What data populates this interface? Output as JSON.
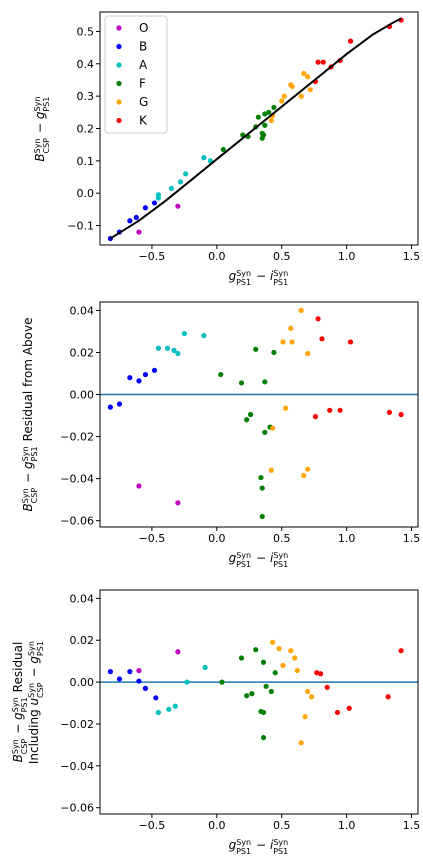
{
  "chart_data": [
    {
      "type": "scatter",
      "xlabel": "g_PS1^Syn − i_PS1^Syn",
      "ylabel": "B_CSP^Syn − g_PS1^Syn",
      "xlim": [
        -0.9,
        1.55
      ],
      "ylim": [
        -0.16,
        0.56
      ],
      "xticks": [
        -0.5,
        0.0,
        0.5,
        1.0,
        1.5
      ],
      "xtick_labels": [
        "−0.5",
        "0.0",
        "0.5",
        "1.0",
        "1.5"
      ],
      "yticks": [
        -0.1,
        0.0,
        0.1,
        0.2,
        0.3,
        0.4,
        0.5
      ],
      "ytick_labels": [
        "−0.1",
        "0.0",
        "0.1",
        "0.2",
        "0.3",
        "0.4",
        "0.5"
      ],
      "grid": false,
      "legend": {
        "placement": "top-left",
        "entries": [
          "O",
          "B",
          "A",
          "F",
          "G",
          "K"
        ]
      },
      "series": [
        {
          "name": "O",
          "color": "#bf00bf",
          "points": [
            [
              -0.6,
              -0.12
            ],
            [
              -0.3,
              -0.04
            ]
          ]
        },
        {
          "name": "B",
          "color": "#0000ff",
          "points": [
            [
              -0.82,
              -0.14
            ],
            [
              -0.75,
              -0.12
            ],
            [
              -0.67,
              -0.085
            ],
            [
              -0.62,
              -0.075
            ],
            [
              -0.55,
              -0.045
            ],
            [
              -0.48,
              -0.03
            ]
          ]
        },
        {
          "name": "A",
          "color": "#00bfbf",
          "points": [
            [
              -0.45,
              -0.015
            ],
            [
              -0.45,
              -0.005
            ],
            [
              -0.35,
              0.015
            ],
            [
              -0.28,
              0.035
            ],
            [
              -0.24,
              0.06
            ],
            [
              -0.1,
              0.11
            ],
            [
              -0.05,
              0.1
            ]
          ]
        },
        {
          "name": "F",
          "color": "#008000",
          "points": [
            [
              0.05,
              0.135
            ],
            [
              0.2,
              0.18
            ],
            [
              0.24,
              0.175
            ],
            [
              0.3,
              0.205
            ],
            [
              0.32,
              0.235
            ],
            [
              0.35,
              0.185
            ],
            [
              0.35,
              0.17
            ],
            [
              0.36,
              0.18
            ],
            [
              0.37,
              0.21
            ],
            [
              0.37,
              0.245
            ],
            [
              0.4,
              0.25
            ],
            [
              0.44,
              0.265
            ]
          ]
        },
        {
          "name": "G",
          "color": "#ffa500",
          "points": [
            [
              0.42,
              0.225
            ],
            [
              0.43,
              0.24
            ],
            [
              0.5,
              0.285
            ],
            [
              0.52,
              0.3
            ],
            [
              0.57,
              0.335
            ],
            [
              0.58,
              0.33
            ],
            [
              0.65,
              0.3
            ],
            [
              0.67,
              0.37
            ],
            [
              0.7,
              0.36
            ],
            [
              0.72,
              0.32
            ]
          ]
        },
        {
          "name": "K",
          "color": "#ff0000",
          "points": [
            [
              0.76,
              0.345
            ],
            [
              0.78,
              0.405
            ],
            [
              0.82,
              0.405
            ],
            [
              0.88,
              0.39
            ],
            [
              0.95,
              0.41
            ],
            [
              1.03,
              0.47
            ],
            [
              1.33,
              0.515
            ],
            [
              1.42,
              0.535
            ]
          ]
        }
      ],
      "fit_line": {
        "color": "#000000",
        "x": [
          -0.82,
          -0.6,
          -0.4,
          -0.2,
          0.0,
          0.2,
          0.4,
          0.6,
          0.8,
          1.0,
          1.2,
          1.35,
          1.42
        ],
        "y": [
          -0.14,
          -0.085,
          -0.025,
          0.04,
          0.105,
          0.17,
          0.235,
          0.3,
          0.365,
          0.43,
          0.49,
          0.525,
          0.54
        ]
      }
    },
    {
      "type": "scatter",
      "xlabel": "g_PS1^Syn − i_PS1^Syn",
      "ylabel": "B_CSP^Syn − g_PS1^Syn Residual from Above",
      "xlim": [
        -0.9,
        1.55
      ],
      "ylim": [
        -0.063,
        0.044
      ],
      "xticks": [
        -0.5,
        0.0,
        0.5,
        1.0,
        1.5
      ],
      "xtick_labels": [
        "−0.5",
        "0.0",
        "0.5",
        "1.0",
        "1.5"
      ],
      "yticks": [
        -0.06,
        -0.04,
        -0.02,
        0.0,
        0.02,
        0.04
      ],
      "ytick_labels": [
        "−0.06",
        "−0.04",
        "−0.02",
        "0.00",
        "0.02",
        "0.04"
      ],
      "grid": false,
      "zero_line_color": "#1f77b4",
      "series": [
        {
          "name": "O",
          "color": "#bf00bf",
          "points": [
            [
              -0.6,
              -0.0435
            ],
            [
              -0.3,
              -0.0515
            ]
          ]
        },
        {
          "name": "B",
          "color": "#0000ff",
          "points": [
            [
              -0.82,
              -0.006
            ],
            [
              -0.75,
              -0.0045
            ],
            [
              -0.67,
              0.008
            ],
            [
              -0.6,
              0.0065
            ],
            [
              -0.55,
              0.0095
            ],
            [
              -0.48,
              0.0115
            ]
          ]
        },
        {
          "name": "A",
          "color": "#00bfbf",
          "points": [
            [
              -0.45,
              0.022
            ],
            [
              -0.38,
              0.022
            ],
            [
              -0.33,
              0.021
            ],
            [
              -0.3,
              0.0195
            ],
            [
              -0.25,
              0.029
            ],
            [
              -0.1,
              0.028
            ]
          ]
        },
        {
          "name": "F",
          "color": "#008000",
          "points": [
            [
              0.03,
              0.0095
            ],
            [
              0.19,
              0.0055
            ],
            [
              0.23,
              -0.012
            ],
            [
              0.26,
              -0.0095
            ],
            [
              0.3,
              0.0215
            ],
            [
              0.34,
              -0.0395
            ],
            [
              0.35,
              -0.0445
            ],
            [
              0.35,
              -0.058
            ],
            [
              0.37,
              -0.018
            ],
            [
              0.37,
              0.006
            ],
            [
              0.41,
              -0.0155
            ],
            [
              0.44,
              0.02
            ]
          ]
        },
        {
          "name": "G",
          "color": "#ffa500",
          "points": [
            [
              0.42,
              -0.036
            ],
            [
              0.43,
              -0.016
            ],
            [
              0.51,
              0.025
            ],
            [
              0.53,
              -0.0065
            ],
            [
              0.57,
              0.0315
            ],
            [
              0.58,
              0.025
            ],
            [
              0.65,
              0.04
            ],
            [
              0.67,
              -0.0385
            ],
            [
              0.7,
              0.0195
            ],
            [
              0.7,
              -0.0355
            ]
          ]
        },
        {
          "name": "K",
          "color": "#ff0000",
          "points": [
            [
              0.76,
              -0.0105
            ],
            [
              0.78,
              0.036
            ],
            [
              0.81,
              0.0265
            ],
            [
              0.87,
              -0.0075
            ],
            [
              0.95,
              -0.0075
            ],
            [
              1.03,
              0.025
            ],
            [
              1.33,
              -0.0085
            ],
            [
              1.42,
              -0.0095
            ]
          ]
        }
      ]
    },
    {
      "type": "scatter",
      "xlabel": "g_PS1^Syn − i_PS1^Syn",
      "ylabel_line1": "B_CSP^Syn − g_PS1^Syn Residual",
      "ylabel_line2": "Including u_CSP^Syn − g_PS1^Syn",
      "xlim": [
        -0.9,
        1.55
      ],
      "ylim": [
        -0.063,
        0.044
      ],
      "xticks": [
        -0.5,
        0.0,
        0.5,
        1.0,
        1.5
      ],
      "xtick_labels": [
        "−0.5",
        "0.0",
        "0.5",
        "1.0",
        "1.5"
      ],
      "yticks": [
        -0.06,
        -0.04,
        -0.02,
        0.0,
        0.02,
        0.04
      ],
      "ytick_labels": [
        "−0.06",
        "−0.04",
        "−0.02",
        "0.00",
        "0.02",
        "0.04"
      ],
      "grid": false,
      "zero_line_color": "#1f77b4",
      "series": [
        {
          "name": "O",
          "color": "#bf00bf",
          "points": [
            [
              -0.6,
              0.0055
            ],
            [
              -0.3,
              0.0145
            ]
          ]
        },
        {
          "name": "B",
          "color": "#0000ff",
          "points": [
            [
              -0.82,
              0.005
            ],
            [
              -0.75,
              0.0015
            ],
            [
              -0.67,
              0.005
            ],
            [
              -0.6,
              0.0005
            ],
            [
              -0.55,
              -0.003
            ],
            [
              -0.47,
              -0.0075
            ]
          ]
        },
        {
          "name": "A",
          "color": "#00bfbf",
          "points": [
            [
              -0.45,
              -0.0145
            ],
            [
              -0.37,
              -0.013
            ],
            [
              -0.32,
              -0.0115
            ],
            [
              -0.23,
              0.0
            ],
            [
              -0.09,
              0.007
            ]
          ]
        },
        {
          "name": "F",
          "color": "#008000",
          "points": [
            [
              0.04,
              0.0
            ],
            [
              0.19,
              0.0115
            ],
            [
              0.23,
              -0.0065
            ],
            [
              0.27,
              -0.0055
            ],
            [
              0.3,
              0.0155
            ],
            [
              0.34,
              -0.014
            ],
            [
              0.36,
              0.0095
            ],
            [
              0.36,
              -0.0145
            ],
            [
              0.36,
              -0.0265
            ],
            [
              0.38,
              -0.002
            ],
            [
              0.42,
              -0.0045
            ],
            [
              0.45,
              0.0045
            ]
          ]
        },
        {
          "name": "G",
          "color": "#ffa500",
          "points": [
            [
              0.43,
              0.019
            ],
            [
              0.48,
              0.016
            ],
            [
              0.51,
              0.008
            ],
            [
              0.57,
              0.015
            ],
            [
              0.6,
              0.0115
            ],
            [
              0.62,
              0.0055
            ],
            [
              0.65,
              -0.029
            ],
            [
              0.68,
              -0.0165
            ],
            [
              0.7,
              -0.0045
            ],
            [
              0.73,
              -0.007
            ]
          ]
        },
        {
          "name": "K",
          "color": "#ff0000",
          "points": [
            [
              0.77,
              0.0045
            ],
            [
              0.8,
              0.004
            ],
            [
              0.85,
              -0.0025
            ],
            [
              0.93,
              -0.0145
            ],
            [
              1.02,
              -0.0125
            ],
            [
              1.32,
              -0.007
            ],
            [
              1.42,
              0.015
            ]
          ]
        }
      ]
    }
  ]
}
